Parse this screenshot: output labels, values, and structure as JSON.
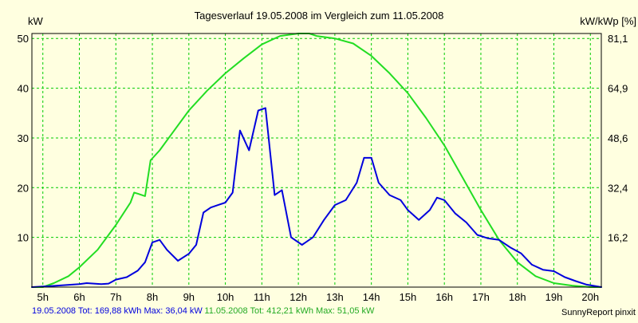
{
  "chart_data": {
    "type": "line",
    "title": "Tagesverlauf 19.05.2008 im Vergleich zum 11.05.2008",
    "ylabel_left": "kW",
    "ylabel_right": "kW/kWp [%]",
    "x_unit_suffix": "h",
    "xlim": [
      4.7,
      20.3
    ],
    "ylim": [
      0,
      51
    ],
    "x_ticks": [
      5,
      6,
      7,
      8,
      9,
      10,
      11,
      12,
      13,
      14,
      15,
      16,
      17,
      18,
      19,
      20
    ],
    "y_ticks_left": [
      10,
      20,
      30,
      40,
      50
    ],
    "y_ticks_right": [
      "16,2",
      "32,4",
      "48,6",
      "64,9",
      "81,1"
    ],
    "grid": true,
    "background_color": "#FFFFE0",
    "grid_color": "#00CC00",
    "series": [
      {
        "name": "11.05.2008",
        "color": "#22DD22",
        "points": [
          [
            4.7,
            0
          ],
          [
            5.0,
            0
          ],
          [
            5.3,
            0.8
          ],
          [
            5.7,
            2.2
          ],
          [
            6.0,
            4.0
          ],
          [
            6.5,
            7.5
          ],
          [
            7.0,
            12.5
          ],
          [
            7.4,
            17.0
          ],
          [
            7.5,
            19.0
          ],
          [
            7.6,
            18.8
          ],
          [
            7.8,
            18.3
          ],
          [
            7.95,
            25.5
          ],
          [
            8.2,
            27.5
          ],
          [
            8.5,
            30.5
          ],
          [
            9.0,
            35.5
          ],
          [
            9.5,
            39.5
          ],
          [
            10.0,
            43.0
          ],
          [
            10.5,
            46.0
          ],
          [
            11.0,
            48.8
          ],
          [
            11.5,
            50.5
          ],
          [
            12.0,
            51.0
          ],
          [
            12.3,
            51.0
          ],
          [
            12.5,
            50.5
          ],
          [
            13.0,
            50.0
          ],
          [
            13.5,
            49.0
          ],
          [
            14.0,
            46.5
          ],
          [
            14.5,
            43.0
          ],
          [
            15.0,
            39.0
          ],
          [
            15.5,
            34.0
          ],
          [
            16.0,
            28.5
          ],
          [
            16.5,
            22.0
          ],
          [
            17.0,
            15.5
          ],
          [
            17.5,
            9.5
          ],
          [
            18.0,
            5.0
          ],
          [
            18.5,
            2.2
          ],
          [
            19.0,
            0.8
          ],
          [
            19.5,
            0.3
          ],
          [
            20.0,
            0
          ],
          [
            20.3,
            0
          ]
        ]
      },
      {
        "name": "19.05.2008",
        "color": "#0000DD",
        "points": [
          [
            4.7,
            0
          ],
          [
            5.2,
            0.2
          ],
          [
            5.6,
            0.4
          ],
          [
            6.0,
            0.6
          ],
          [
            6.2,
            0.8
          ],
          [
            6.6,
            0.6
          ],
          [
            6.8,
            0.7
          ],
          [
            7.0,
            1.5
          ],
          [
            7.3,
            2.0
          ],
          [
            7.6,
            3.3
          ],
          [
            7.8,
            5.0
          ],
          [
            8.0,
            9.0
          ],
          [
            8.2,
            9.5
          ],
          [
            8.4,
            7.5
          ],
          [
            8.7,
            5.3
          ],
          [
            9.0,
            6.7
          ],
          [
            9.2,
            8.5
          ],
          [
            9.4,
            15.0
          ],
          [
            9.6,
            16.0
          ],
          [
            9.8,
            16.5
          ],
          [
            10.0,
            17.0
          ],
          [
            10.2,
            19.0
          ],
          [
            10.4,
            31.5
          ],
          [
            10.65,
            27.5
          ],
          [
            10.9,
            35.5
          ],
          [
            11.1,
            36.0
          ],
          [
            11.35,
            18.5
          ],
          [
            11.55,
            19.5
          ],
          [
            11.8,
            10.0
          ],
          [
            12.1,
            8.5
          ],
          [
            12.4,
            10.0
          ],
          [
            12.7,
            13.5
          ],
          [
            13.0,
            16.5
          ],
          [
            13.3,
            17.5
          ],
          [
            13.6,
            21.0
          ],
          [
            13.8,
            26.0
          ],
          [
            14.0,
            26.0
          ],
          [
            14.2,
            21.0
          ],
          [
            14.5,
            18.5
          ],
          [
            14.8,
            17.5
          ],
          [
            15.0,
            15.5
          ],
          [
            15.3,
            13.5
          ],
          [
            15.6,
            15.5
          ],
          [
            15.8,
            18.0
          ],
          [
            16.0,
            17.5
          ],
          [
            16.3,
            14.8
          ],
          [
            16.6,
            13.0
          ],
          [
            16.9,
            10.5
          ],
          [
            17.2,
            9.8
          ],
          [
            17.5,
            9.5
          ],
          [
            17.8,
            8.0
          ],
          [
            18.1,
            6.8
          ],
          [
            18.4,
            4.5
          ],
          [
            18.7,
            3.5
          ],
          [
            19.0,
            3.2
          ],
          [
            19.3,
            2.0
          ],
          [
            19.6,
            1.2
          ],
          [
            19.9,
            0.5
          ],
          [
            20.3,
            0
          ]
        ]
      }
    ],
    "footer_left_blue": "19.05.2008 Tot: 169,88 kWh Max: 36,04 kW",
    "footer_left_green": "11.05.2008 Tot: 412,21 kWh Max: 51,05 kW",
    "footer_right": "SunnyReport pinxit"
  }
}
